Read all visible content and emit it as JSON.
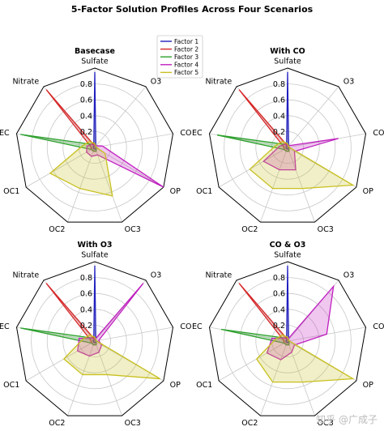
{
  "figure_title": "5-Factor Solution Profiles Across Four Scenarios",
  "watermark": "知乎 @广成子",
  "colors": {
    "Factor 1": "#1f1fbf",
    "Factor 2": "#d62728",
    "Factor 3": "#2ca02c",
    "Factor 4": "#c020c0",
    "Factor 5": "#c8c020"
  },
  "chart_data": [
    {
      "type": "radar",
      "title": "Basecase",
      "axes": [
        "Sulfate",
        "O3",
        "CO",
        "OP",
        "OC3",
        "OC2",
        "OC1",
        "EC",
        "Nitrate"
      ],
      "rgrid_ticks": [
        0.2,
        0.4,
        0.6,
        0.8
      ],
      "rmax": 1.0,
      "legend": {
        "entries": [
          "Factor 1",
          "Factor 2",
          "Factor 3",
          "Factor 4",
          "Factor 5"
        ]
      },
      "series": [
        {
          "name": "Factor 1",
          "values": [
            0.95,
            0.02,
            0.02,
            0.02,
            0.02,
            0.02,
            0.02,
            0.02,
            0.02
          ]
        },
        {
          "name": "Factor 2",
          "values": [
            0.02,
            0.02,
            0.02,
            0.02,
            0.05,
            0.05,
            0.05,
            0.05,
            0.95
          ]
        },
        {
          "name": "Factor 3",
          "values": [
            0.02,
            0.02,
            0.02,
            0.02,
            0.05,
            0.05,
            0.05,
            0.95,
            0.05
          ]
        },
        {
          "name": "Factor 4",
          "values": [
            0.02,
            0.03,
            0.1,
            1.0,
            0.1,
            0.12,
            0.12,
            0.1,
            0.05
          ]
        },
        {
          "name": "Factor 5",
          "values": [
            0.05,
            0.02,
            0.02,
            0.15,
            0.65,
            0.55,
            0.65,
            0.15,
            0.1
          ]
        }
      ]
    },
    {
      "type": "radar",
      "title": "With CO",
      "axes": [
        "Sulfate",
        "O3",
        "CO",
        "OP",
        "OC3",
        "OC2",
        "OC1",
        "EC",
        "Nitrate"
      ],
      "rgrid_ticks": [
        0.2,
        0.4,
        0.6,
        0.8
      ],
      "rmax": 1.0,
      "series": [
        {
          "name": "Factor 1",
          "values": [
            0.95,
            0.02,
            0.02,
            0.02,
            0.02,
            0.02,
            0.02,
            0.02,
            0.02
          ]
        },
        {
          "name": "Factor 2",
          "values": [
            0.02,
            0.02,
            0.02,
            0.02,
            0.05,
            0.05,
            0.05,
            0.05,
            0.95
          ]
        },
        {
          "name": "Factor 3",
          "values": [
            0.02,
            0.02,
            0.02,
            0.02,
            0.05,
            0.05,
            0.05,
            0.9,
            0.05
          ]
        },
        {
          "name": "Factor 4",
          "values": [
            0.02,
            0.03,
            0.65,
            0.1,
            0.3,
            0.3,
            0.35,
            0.1,
            0.05
          ]
        },
        {
          "name": "Factor 5",
          "values": [
            0.05,
            0.02,
            0.02,
            0.95,
            0.55,
            0.55,
            0.55,
            0.15,
            0.1
          ]
        }
      ]
    },
    {
      "type": "radar",
      "title": "With O3",
      "axes": [
        "Sulfate",
        "O3",
        "CO",
        "OP",
        "OC3",
        "OC2",
        "OC1",
        "EC",
        "Nitrate"
      ],
      "rgrid_ticks": [
        0.2,
        0.4,
        0.6,
        0.8
      ],
      "rmax": 1.0,
      "series": [
        {
          "name": "Factor 1",
          "values": [
            0.95,
            0.02,
            0.02,
            0.02,
            0.02,
            0.02,
            0.02,
            0.02,
            0.02
          ]
        },
        {
          "name": "Factor 2",
          "values": [
            0.02,
            0.02,
            0.02,
            0.02,
            0.05,
            0.05,
            0.05,
            0.05,
            0.95
          ]
        },
        {
          "name": "Factor 3",
          "values": [
            0.02,
            0.02,
            0.02,
            0.02,
            0.05,
            0.05,
            0.05,
            0.95,
            0.05
          ]
        },
        {
          "name": "Factor 4",
          "values": [
            0.02,
            0.95,
            0.05,
            0.1,
            0.15,
            0.2,
            0.25,
            0.2,
            0.05
          ]
        },
        {
          "name": "Factor 5",
          "values": [
            0.05,
            0.02,
            0.02,
            0.95,
            0.45,
            0.45,
            0.45,
            0.15,
            0.1
          ]
        }
      ]
    },
    {
      "type": "radar",
      "title": "CO & O3",
      "axes": [
        "Sulfate",
        "O3",
        "CO",
        "OP",
        "OC3",
        "OC2",
        "OC1",
        "EC",
        "Nitrate"
      ],
      "rgrid_ticks": [
        0.2,
        0.4,
        0.6,
        0.8
      ],
      "rmax": 1.0,
      "series": [
        {
          "name": "Factor 1",
          "values": [
            0.95,
            0.02,
            0.02,
            0.02,
            0.02,
            0.02,
            0.02,
            0.02,
            0.02
          ]
        },
        {
          "name": "Factor 2",
          "values": [
            0.02,
            0.02,
            0.02,
            0.02,
            0.05,
            0.05,
            0.05,
            0.05,
            0.95
          ]
        },
        {
          "name": "Factor 3",
          "values": [
            0.02,
            0.02,
            0.02,
            0.02,
            0.05,
            0.05,
            0.05,
            0.85,
            0.05
          ]
        },
        {
          "name": "Factor 4",
          "values": [
            0.02,
            0.9,
            0.5,
            0.1,
            0.15,
            0.25,
            0.3,
            0.2,
            0.05
          ]
        },
        {
          "name": "Factor 5",
          "values": [
            0.05,
            0.02,
            0.02,
            0.95,
            0.55,
            0.55,
            0.45,
            0.15,
            0.1
          ]
        }
      ]
    }
  ]
}
